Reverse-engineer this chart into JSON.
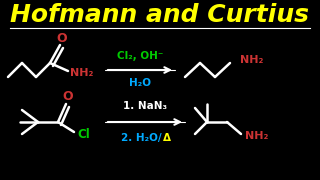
{
  "title": "Hofmann and Curtius",
  "title_color": "#FFFF00",
  "title_fontsize": 18,
  "bg_color": "#000000",
  "white": "#FFFFFF",
  "reaction1": {
    "reagents_line1": "Cl₂, OH⁻",
    "reagents_line2": "H₂O",
    "reagents_color1": "#00CC00",
    "reagents_color2": "#00AAFF",
    "nh2_color": "#CC3333",
    "o_color": "#CC3333",
    "product_nh2_color": "#CC3333",
    "struct_color": "#FFFFFF"
  },
  "reaction2": {
    "reagents_line1": "1. NaN₃",
    "reagents_line2": "2. H₂O/Δ",
    "reagents_color1": "#FFFFFF",
    "reagents_color2": "#00AAFF",
    "delta_color": "#FFFF00",
    "cl_color": "#00CC00",
    "o_color": "#CC3333",
    "product_nh2_color": "#CC3333",
    "struct_color": "#FFFFFF"
  }
}
